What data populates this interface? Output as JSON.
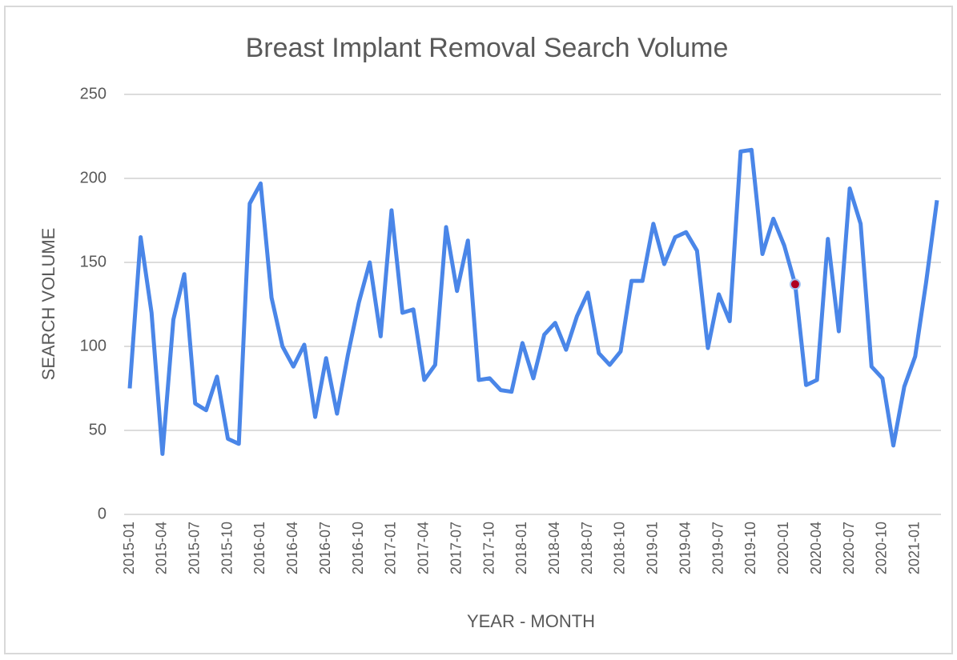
{
  "chart_data": {
    "type": "line",
    "title": "Breast Implant Removal Search Volume",
    "x_label": "YEAR - MONTH",
    "y_label": "SEARCH VOLUME",
    "categories": [
      "2015-01",
      null,
      null,
      "2015-04",
      null,
      null,
      "2015-07",
      null,
      null,
      "2015-10",
      null,
      null,
      "2016-01",
      null,
      null,
      "2016-04",
      null,
      null,
      "2016-07",
      null,
      null,
      "2016-10",
      null,
      null,
      "2017-01",
      null,
      null,
      "2017-04",
      null,
      null,
      "2017-07",
      null,
      null,
      "2017-10",
      null,
      null,
      "2018-01",
      null,
      null,
      "2018-04",
      null,
      null,
      "2018-07",
      null,
      null,
      "2018-10",
      null,
      null,
      "2019-01",
      null,
      null,
      "2019-04",
      null,
      null,
      "2019-07",
      null,
      null,
      "2019-10",
      null,
      null,
      "2020-01",
      null,
      null,
      "2020-04",
      null,
      null,
      "2020-07",
      null,
      null,
      "2020-10",
      null,
      null,
      "2021-01",
      null,
      null
    ],
    "values": [
      75,
      165,
      120,
      36,
      116,
      143,
      66,
      62,
      82,
      45,
      42,
      185,
      197,
      129,
      100,
      88,
      101,
      58,
      93,
      60,
      95,
      126,
      150,
      106,
      181,
      120,
      122,
      80,
      89,
      171,
      133,
      163,
      80,
      81,
      74,
      73,
      102,
      81,
      107,
      114,
      98,
      118,
      132,
      96,
      89,
      97,
      139,
      139,
      173,
      149,
      165,
      168,
      157,
      99,
      131,
      115,
      216,
      217,
      155,
      176,
      160,
      137,
      77,
      80,
      164,
      109,
      194,
      173,
      88,
      81,
      41,
      76,
      94,
      138,
      187
    ],
    "color": "#4a86e8",
    "highlight": {
      "index": 61,
      "color": "#b00020"
    },
    "ylim": [
      0,
      250
    ],
    "yticks": [
      0,
      50,
      100,
      150,
      200,
      250
    ],
    "grid": true
  }
}
